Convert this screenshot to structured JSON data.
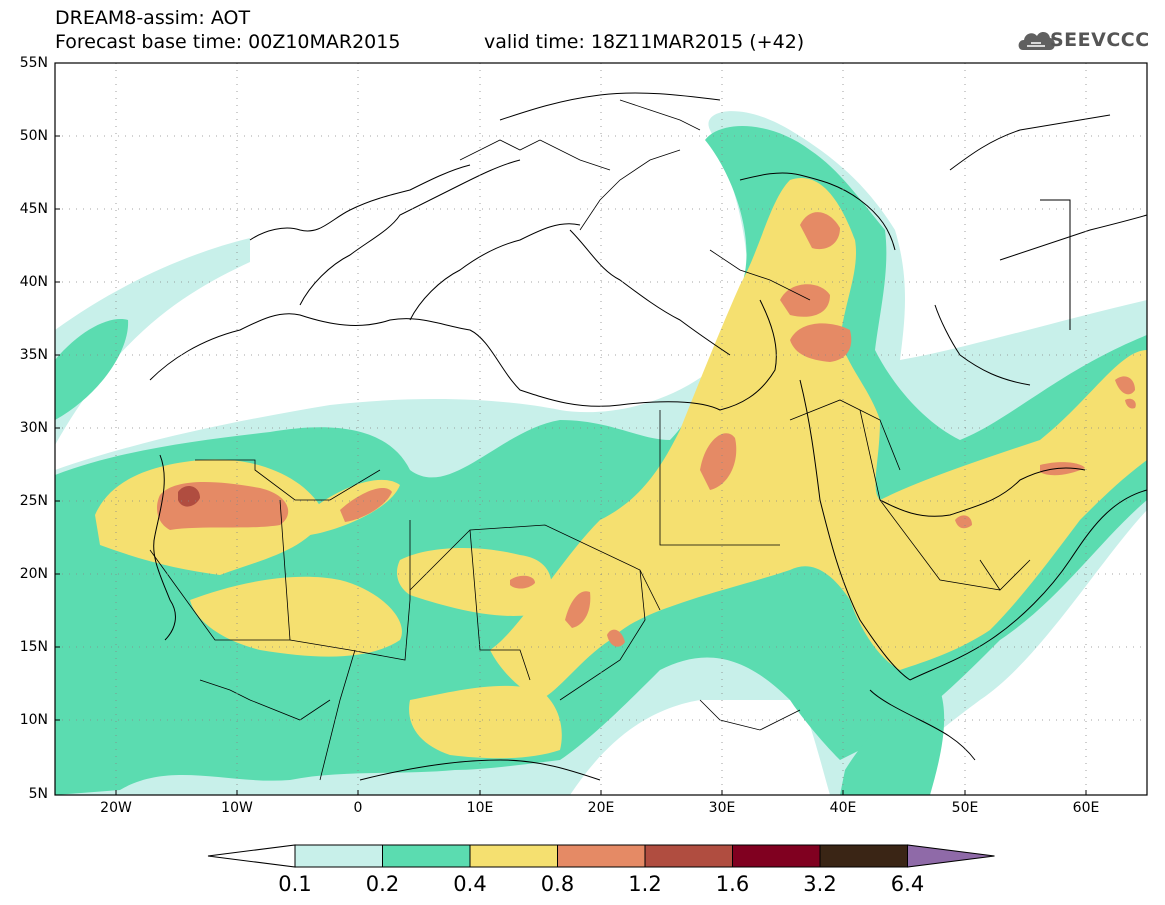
{
  "header": {
    "title": "DREAM8-assim: AOT",
    "base_time": "Forecast base time: 00Z10MAR2015",
    "valid_time": "valid time: 18Z11MAR2015 (+42)",
    "logo_text": "SEEVCCC"
  },
  "map": {
    "lat_labels": [
      "55N",
      "50N",
      "45N",
      "40N",
      "35N",
      "30N",
      "25N",
      "20N",
      "15N",
      "10N",
      "5N"
    ],
    "lon_labels": [
      "20W",
      "10W",
      "0",
      "10E",
      "20E",
      "30E",
      "40E",
      "50E",
      "60E"
    ]
  },
  "legend": {
    "levels": [
      "0.1",
      "0.2",
      "0.4",
      "0.8",
      "1.2",
      "1.6",
      "3.2",
      "6.4"
    ],
    "colors": [
      "#ffffff",
      "#c8f0ea",
      "#5bdcb0",
      "#f5e070",
      "#e58a65",
      "#b04d40",
      "#800020",
      "#3a2515",
      "#8f6aa8"
    ]
  },
  "colors": {
    "c01": "#c8f0ea",
    "c02": "#5bdcb0",
    "c04": "#f5e070",
    "c08": "#e58a65",
    "c12": "#b04d40"
  }
}
